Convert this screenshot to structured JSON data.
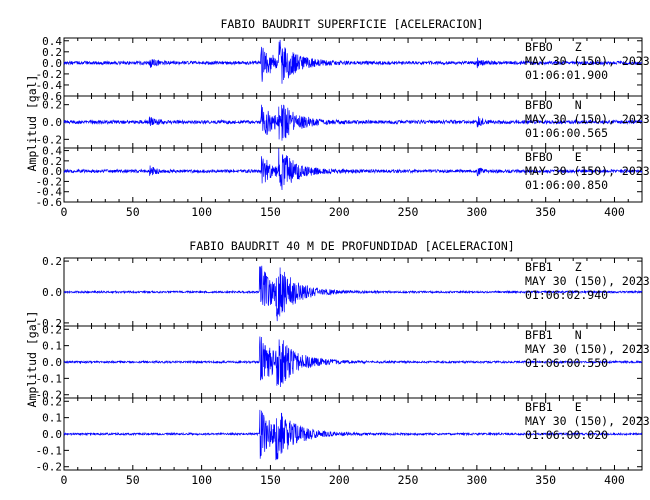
{
  "colors": {
    "trace": "#0000ff",
    "axes": "#000000",
    "background": "#ffffff"
  },
  "chart_data": [
    {
      "type": "line",
      "title": "FABIO BAUDRIT SUPERFICIE [ACELERACION]",
      "ylabel": "Amplitud [gal]",
      "xlim": [
        0,
        420
      ],
      "xticks": [
        0,
        50,
        100,
        150,
        200,
        250,
        300,
        350,
        400
      ],
      "series": [
        {
          "station": "BFBO",
          "component": "Z",
          "date": "MAY 30 (150), 2023",
          "time": "01:06:01.900",
          "ylim": [
            -0.6,
            0.45
          ],
          "yticks": [
            {
              "v": 0.4,
              "t": "0.4"
            },
            {
              "v": 0.2,
              "t": "0.2"
            },
            {
              "v": 0.0,
              "t": "0.0"
            },
            {
              "v": -0.2,
              "t": "-0.2"
            },
            {
              "v": -0.4,
              "t": "-0.4"
            },
            {
              "v": -0.6,
              "t": "-0.6"
            }
          ],
          "noise": 0.03,
          "events": [
            {
              "t": 62,
              "amp": 0.1,
              "tau": 4
            },
            {
              "t": 143,
              "amp": 0.38,
              "tau": 8
            },
            {
              "t": 156,
              "amp": 0.4,
              "tau": 12
            },
            {
              "t": 300,
              "amp": 0.1,
              "tau": 3
            }
          ]
        },
        {
          "station": "BFBO",
          "component": "N",
          "date": "MAY 30 (150), 2023",
          "time": "01:06:00.565",
          "ylim": [
            -0.3,
            0.3
          ],
          "yticks": [
            {
              "v": 0.2,
              "t": "0.2"
            },
            {
              "v": 0.0,
              "t": "0.0"
            },
            {
              "v": -0.2,
              "t": "-0.2"
            }
          ],
          "noise": 0.02,
          "events": [
            {
              "t": 62,
              "amp": 0.06,
              "tau": 4
            },
            {
              "t": 143,
              "amp": 0.25,
              "tau": 8
            },
            {
              "t": 156,
              "amp": 0.22,
              "tau": 12
            },
            {
              "t": 300,
              "amp": 0.07,
              "tau": 3
            }
          ]
        },
        {
          "station": "BFBO",
          "component": "E",
          "date": "MAY 30 (150), 2023",
          "time": "01:06:00.850",
          "ylim": [
            -0.6,
            0.45
          ],
          "yticks": [
            {
              "v": 0.4,
              "t": "0.4"
            },
            {
              "v": 0.2,
              "t": "0.2"
            },
            {
              "v": 0.0,
              "t": "0.0"
            },
            {
              "v": -0.2,
              "t": "-0.2"
            },
            {
              "v": -0.4,
              "t": "-0.4"
            },
            {
              "v": -0.6,
              "t": "-0.6"
            }
          ],
          "noise": 0.03,
          "events": [
            {
              "t": 62,
              "amp": 0.1,
              "tau": 4
            },
            {
              "t": 143,
              "amp": 0.35,
              "tau": 8
            },
            {
              "t": 156,
              "amp": 0.4,
              "tau": 12
            },
            {
              "t": 300,
              "amp": 0.1,
              "tau": 3
            }
          ]
        }
      ]
    },
    {
      "type": "line",
      "title": "FABIO BAUDRIT 40 M DE PROFUNDIDAD [ACELERACION]",
      "ylabel": "Amplitud [gal]",
      "xlim": [
        0,
        420
      ],
      "xticks": [
        0,
        50,
        100,
        150,
        200,
        250,
        300,
        350,
        400
      ],
      "series": [
        {
          "station": "BFB1",
          "component": "Z",
          "date": "MAY 30 (150), 2023",
          "time": "01:06:02.940",
          "ylim": [
            -0.22,
            0.22
          ],
          "yticks": [
            {
              "v": 0.2,
              "t": "0.2"
            },
            {
              "v": 0.0,
              "t": "0.0"
            },
            {
              "v": -0.2,
              "t": "-0.2"
            }
          ],
          "noise": 0.006,
          "events": [
            {
              "t": 142,
              "amp": 0.2,
              "tau": 9
            },
            {
              "t": 154,
              "amp": 0.15,
              "tau": 15
            }
          ]
        },
        {
          "station": "BFB1",
          "component": "N",
          "date": "MAY 30 (150), 2023",
          "time": "01:06:00.550",
          "ylim": [
            -0.22,
            0.22
          ],
          "yticks": [
            {
              "v": 0.2,
              "t": "0.2"
            },
            {
              "v": 0.1,
              "t": "0.1"
            },
            {
              "v": 0.0,
              "t": "0.0"
            },
            {
              "v": -0.1,
              "t": "-0.1"
            },
            {
              "v": -0.2,
              "t": "-0.2"
            }
          ],
          "noise": 0.006,
          "events": [
            {
              "t": 142,
              "amp": 0.2,
              "tau": 9
            },
            {
              "t": 154,
              "amp": 0.14,
              "tau": 15
            }
          ]
        },
        {
          "station": "BFB1",
          "component": "E",
          "date": "MAY 30 (150), 2023",
          "time": "01:06:00.020",
          "ylim": [
            -0.22,
            0.22
          ],
          "yticks": [
            {
              "v": 0.2,
              "t": "0.2"
            },
            {
              "v": 0.1,
              "t": "0.1"
            },
            {
              "v": 0.0,
              "t": "0.0"
            },
            {
              "v": -0.1,
              "t": "-0.1"
            },
            {
              "v": -0.2,
              "t": "-0.2"
            }
          ],
          "noise": 0.006,
          "events": [
            {
              "t": 142,
              "amp": 0.18,
              "tau": 9
            },
            {
              "t": 154,
              "amp": 0.13,
              "tau": 15
            }
          ]
        }
      ]
    }
  ]
}
